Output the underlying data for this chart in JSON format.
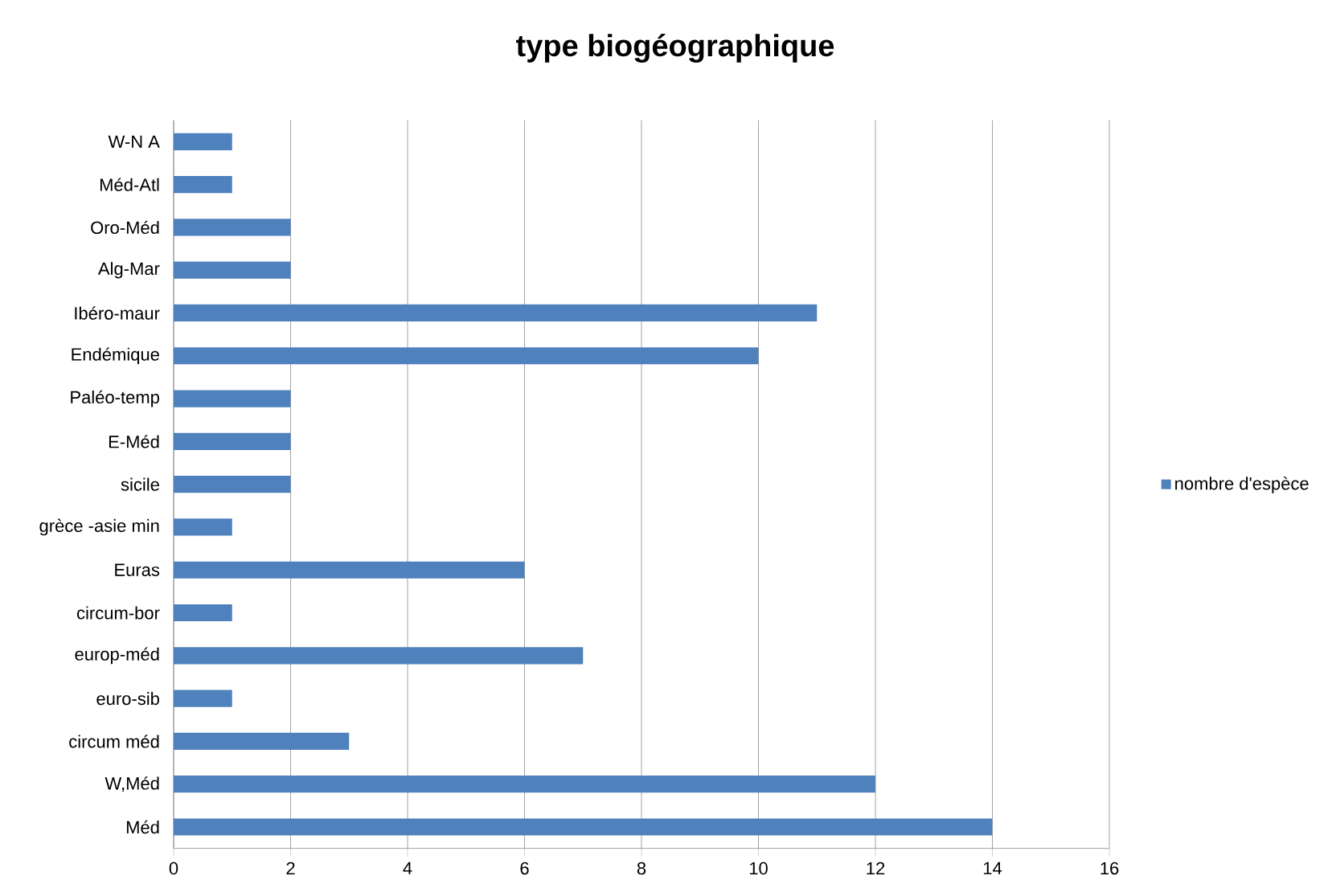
{
  "chart_data": {
    "type": "bar",
    "orientation": "horizontal",
    "title": "type biogéographique",
    "categories": [
      "W-N A",
      "Méd-Atl",
      "Oro-Méd",
      "Alg-Mar",
      "Ibéro-maur",
      "Endémique",
      "Paléo-temp",
      "E-Méd",
      "sicile",
      "grèce -asie min",
      "Euras",
      "circum-bor",
      "europ-méd",
      "euro-sib",
      "circum méd",
      "W,Méd",
      "Méd"
    ],
    "series": [
      {
        "name": "nombre d'espèce",
        "color": "#4f81bd",
        "values": [
          1,
          1,
          2,
          2,
          11,
          10,
          2,
          2,
          2,
          1,
          6,
          1,
          7,
          1,
          3,
          12,
          14
        ]
      }
    ],
    "xlim": [
      0,
      16
    ],
    "xticks": [
      0,
      2,
      4,
      6,
      8,
      10,
      12,
      14,
      16
    ],
    "grid": "x",
    "legend": "right"
  }
}
